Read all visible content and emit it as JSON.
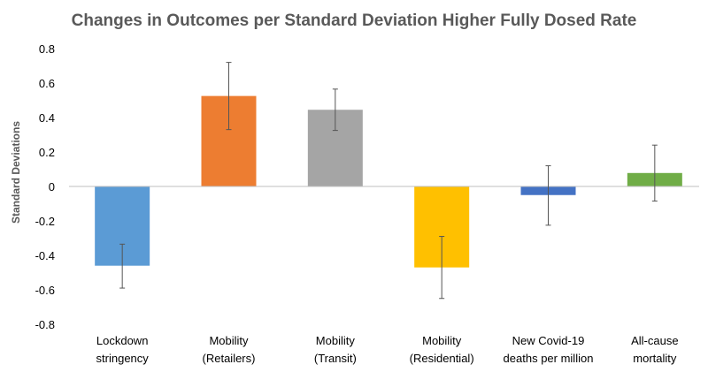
{
  "chart_data": {
    "type": "bar",
    "title": "Changes in Outcomes per Standard Deviation Higher Fully Dosed Rate",
    "xlabel": "",
    "ylabel": "Standard Deviations",
    "ylim": [
      -0.8,
      0.8
    ],
    "yticks": [
      "0.8",
      "0.6",
      "0.4",
      "0.2",
      "0",
      "-0.2",
      "-0.4",
      "-0.6",
      "-0.8"
    ],
    "ytick_values": [
      0.8,
      0.6,
      0.4,
      0.2,
      0,
      -0.2,
      -0.4,
      -0.6,
      -0.8
    ],
    "grid": false,
    "legend": "none",
    "categories": [
      [
        "Lockdown",
        "stringency"
      ],
      [
        "Mobility",
        "(Retailers)"
      ],
      [
        "Mobility",
        "(Transit)"
      ],
      [
        "Mobility",
        "(Residential)"
      ],
      [
        "New Covid-19",
        "deaths per million"
      ],
      [
        "All-cause",
        "mortality"
      ]
    ],
    "values": [
      -0.46,
      0.525,
      0.445,
      -0.47,
      -0.05,
      0.078
    ],
    "error_low": [
      -0.59,
      0.33,
      0.325,
      -0.65,
      -0.225,
      -0.085
    ],
    "error_high": [
      -0.335,
      0.72,
      0.565,
      -0.29,
      0.12,
      0.24
    ],
    "colors": [
      "#5B9BD5",
      "#ED7D31",
      "#A5A5A5",
      "#FFC000",
      "#4472C4",
      "#70AD47"
    ]
  }
}
